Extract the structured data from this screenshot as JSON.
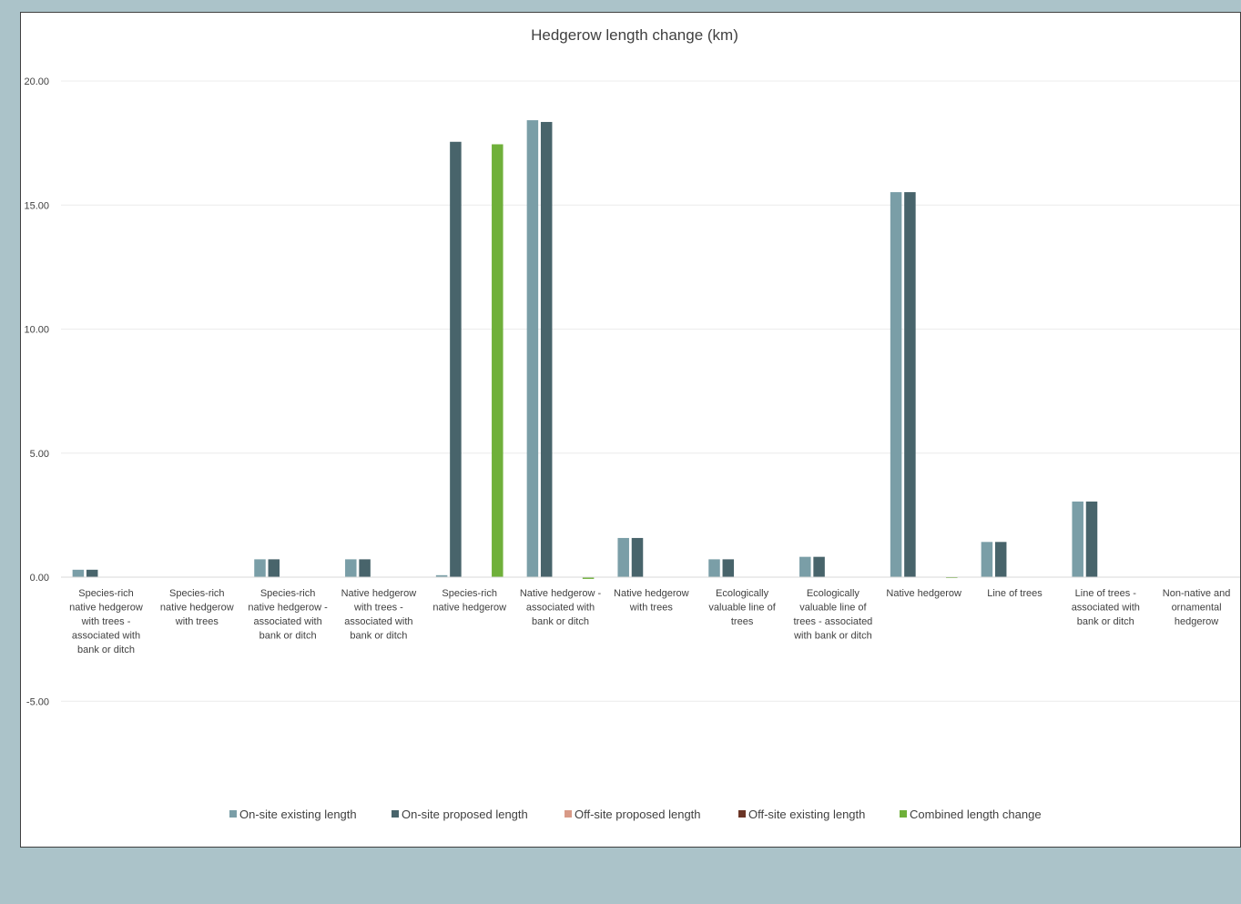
{
  "chart_data": {
    "type": "bar",
    "title": "Hedgerow length change (km)",
    "xlabel": "",
    "ylabel": "",
    "ylim": [
      -9.5,
      20.5
    ],
    "yticks": [
      "20.00",
      "15.00",
      "10.00",
      "5.00",
      "0.00",
      "-5.00"
    ],
    "ytick_values": [
      20,
      15,
      10,
      5,
      0,
      -5
    ],
    "grid": true,
    "legend_position": "bottom",
    "categories": [
      "Species-rich native hedgerow with trees - associated with bank or ditch",
      "Species-rich native hedgerow with trees",
      "Species-rich native hedgerow - associated with bank or ditch",
      "Native hedgerow with trees - associated with bank or ditch",
      "Species-rich native hedgerow",
      "Native hedgerow - associated with bank or ditch",
      "Native hedgerow with trees",
      "Ecologically valuable line of trees",
      "Ecologically valuable line of trees - associated with bank or ditch",
      "Native hedgerow",
      "Line of trees",
      "Line of trees - associated with bank or ditch",
      "Non-native and ornamental hedgerow"
    ],
    "series": [
      {
        "name": "On-site existing length",
        "color": "#7a9ea7",
        "values": [
          0.3,
          0,
          0.72,
          0.72,
          0.08,
          18.42,
          1.58,
          0.72,
          0.82,
          15.52,
          1.42,
          3.05,
          0
        ]
      },
      {
        "name": "On-site proposed length",
        "color": "#48646b",
        "values": [
          0.3,
          0,
          0.72,
          0.72,
          17.55,
          18.35,
          1.58,
          0.72,
          0.82,
          15.52,
          1.42,
          3.05,
          0
        ]
      },
      {
        "name": "Off-site proposed length",
        "color": "#d89a87",
        "values": [
          0,
          0,
          0,
          0,
          0,
          0,
          0,
          0,
          0,
          0,
          0,
          0,
          0
        ]
      },
      {
        "name": "Off-site existing length",
        "color": "#6b3526",
        "values": [
          0,
          0,
          0,
          0,
          0,
          0,
          0,
          0,
          0,
          0,
          0,
          0,
          0
        ]
      },
      {
        "name": "Combined length change",
        "color": "#6fb03a",
        "values": [
          0,
          0,
          0,
          0,
          17.45,
          -0.07,
          0,
          0,
          0,
          -0.02,
          0,
          0,
          0
        ]
      }
    ]
  }
}
